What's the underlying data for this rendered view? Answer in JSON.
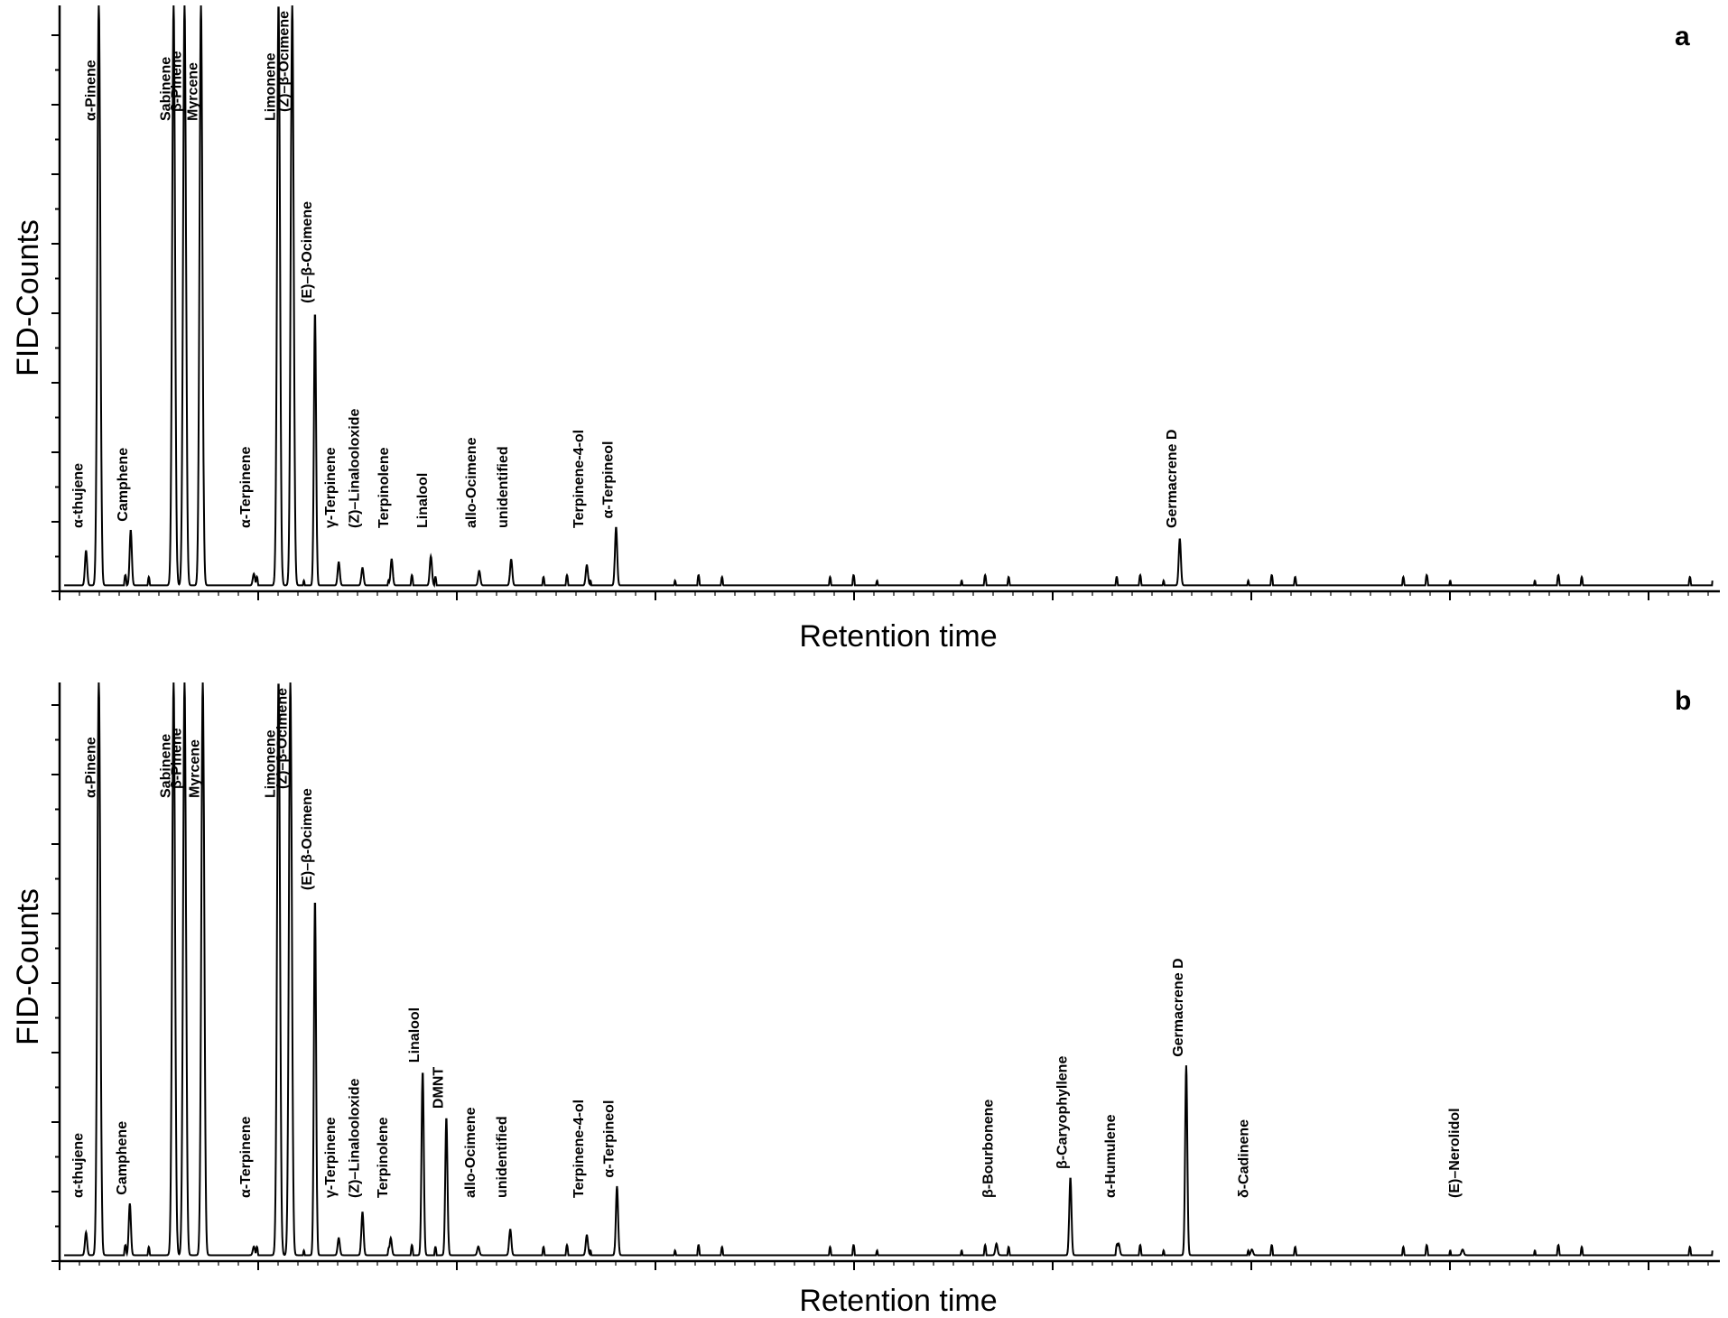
{
  "chart_data": [
    {
      "type": "line",
      "panel_label": "a",
      "xlabel": "Retention time",
      "ylabel": "FID-Counts",
      "peaks": [
        {
          "name": "α-thujene",
          "rt": 29,
          "height": 0.06
        },
        {
          "name": "α-Pinene",
          "rt": 43,
          "height": 1.0,
          "clipped": true
        },
        {
          "name": "Camphene",
          "rt": 78,
          "height": 0.095
        },
        {
          "name": "Sabinene",
          "rt": 125,
          "height": 1.0,
          "clipped": true
        },
        {
          "name": "β-Pinene",
          "rt": 137,
          "height": 1.0,
          "clipped": true
        },
        {
          "name": "Myrcene",
          "rt": 155,
          "height": 1.0,
          "clipped": true
        },
        {
          "name": "α-Terpinene",
          "rt": 213,
          "height": 0.02
        },
        {
          "name": "Limonene",
          "rt": 240,
          "height": 1.0,
          "clipped": true
        },
        {
          "name": "(Z)–β-Ocimene",
          "rt": 255,
          "height": 1.0,
          "clipped": true
        },
        {
          "name": "(E)–β-Ocimene",
          "rt": 280,
          "height": 0.47
        },
        {
          "name": "γ-Terpinene",
          "rt": 306,
          "height": 0.04
        },
        {
          "name": "(Z)–Linalooloxide",
          "rt": 332,
          "height": 0.03
        },
        {
          "name": "Terpinolene",
          "rt": 364,
          "height": 0.045
        },
        {
          "name": "Linalool",
          "rt": 407,
          "height": 0.05
        },
        {
          "name": "allo-Ocimene",
          "rt": 460,
          "height": 0.025
        },
        {
          "name": "unidentified",
          "rt": 495,
          "height": 0.045
        },
        {
          "name": "Terpinene-4-ol",
          "rt": 578,
          "height": 0.035
        },
        {
          "name": "α-Terpineol",
          "rt": 610,
          "height": 0.1
        },
        {
          "name": "Germacrene D",
          "rt": 1228,
          "height": 0.08
        }
      ]
    },
    {
      "type": "line",
      "panel_label": "b",
      "xlabel": "Retention time",
      "ylabel": "FID-Counts",
      "peaks": [
        {
          "name": "α-thujene",
          "rt": 29,
          "height": 0.04
        },
        {
          "name": "α-Pinene",
          "rt": 43,
          "height": 1.0,
          "clipped": true
        },
        {
          "name": "Camphene",
          "rt": 77,
          "height": 0.09
        },
        {
          "name": "Sabinene",
          "rt": 125,
          "height": 1.0,
          "clipped": true
        },
        {
          "name": "β-Pinene",
          "rt": 137,
          "height": 1.0,
          "clipped": true
        },
        {
          "name": "Myrcene",
          "rt": 157,
          "height": 1.0,
          "clipped": true
        },
        {
          "name": "α-Terpinene",
          "rt": 213,
          "height": 0.015
        },
        {
          "name": "Limonene",
          "rt": 240,
          "height": 1.0,
          "clipped": true
        },
        {
          "name": "(Z)–β-Ocimene",
          "rt": 253,
          "height": 1.0,
          "clipped": true
        },
        {
          "name": "(E)–β-Ocimene",
          "rt": 280,
          "height": 0.62
        },
        {
          "name": "γ-Terpinene",
          "rt": 306,
          "height": 0.03
        },
        {
          "name": "(Z)–Linalooloxide",
          "rt": 332,
          "height": 0.075
        },
        {
          "name": "Terpinolene",
          "rt": 363,
          "height": 0.03
        },
        {
          "name": "Linalool",
          "rt": 398,
          "height": 0.32
        },
        {
          "name": "DMNT",
          "rt": 424,
          "height": 0.24
        },
        {
          "name": "allo-Ocimene",
          "rt": 459,
          "height": 0.015
        },
        {
          "name": "unidentified",
          "rt": 494,
          "height": 0.045
        },
        {
          "name": "Terpinene-4-ol",
          "rt": 578,
          "height": 0.035
        },
        {
          "name": "α-Terpineol",
          "rt": 611,
          "height": 0.12
        },
        {
          "name": "β-Bourbonene",
          "rt": 1027,
          "height": 0.02
        },
        {
          "name": "β-Caryophyllene",
          "rt": 1108,
          "height": 0.135
        },
        {
          "name": "α-Humulene",
          "rt": 1161,
          "height": 0.02
        },
        {
          "name": "Germacrene D",
          "rt": 1235,
          "height": 0.33
        },
        {
          "name": "δ-Cadinene",
          "rt": 1307,
          "height": 0.01
        },
        {
          "name": "(E)–Nerolidol",
          "rt": 1538,
          "height": 0.01
        }
      ]
    }
  ]
}
